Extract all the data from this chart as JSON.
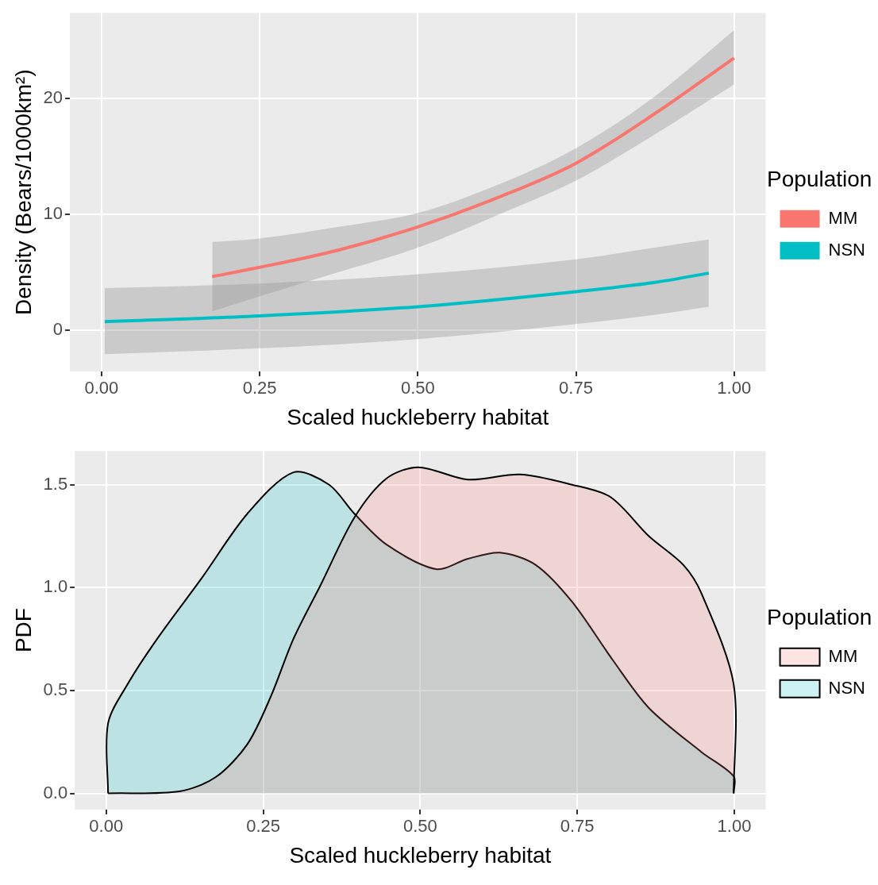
{
  "chart_data": [
    {
      "type": "line",
      "xlabel": "Scaled huckleberry habitat",
      "ylabel": "Density (Bears/1000km²)",
      "legend_title": "Population",
      "legend": "right",
      "grid": true,
      "xlim": [
        -0.05,
        1.05
      ],
      "ylim": [
        -3.6,
        27.4
      ],
      "xticks": [
        {
          "value": 0,
          "label": "0.00"
        },
        {
          "value": 0.25,
          "label": "0.25"
        },
        {
          "value": 0.5,
          "label": "0.50"
        },
        {
          "value": 0.75,
          "label": "0.75"
        },
        {
          "value": 1,
          "label": "1.00"
        }
      ],
      "yticks": [
        0,
        10,
        20
      ],
      "series": [
        {
          "name": "MM",
          "color": "#f8766d",
          "x": [
            0.175,
            0.25,
            0.375,
            0.5,
            0.625,
            0.75,
            0.875,
            1
          ],
          "values": [
            4.6,
            5.4,
            6.9,
            8.9,
            11.4,
            14.4,
            18.7,
            23.5
          ],
          "lower": [
            1.6,
            2.9,
            5.0,
            7.1,
            9.9,
            12.9,
            16.9,
            21.2
          ],
          "upper": [
            7.6,
            7.9,
            8.9,
            10.1,
            12.5,
            15.7,
            20.2,
            25.9
          ]
        },
        {
          "name": "NSN",
          "color": "#00bfc4",
          "x": [
            0.005,
            0.25,
            0.5,
            0.75,
            0.875,
            0.96
          ],
          "values": [
            0.7,
            1.2,
            2.0,
            3.3,
            4.1,
            4.9
          ],
          "lower": [
            -2.1,
            -1.6,
            -0.8,
            0.5,
            1.3,
            2.0
          ],
          "upper": [
            3.6,
            4.0,
            4.8,
            6.1,
            7.1,
            7.8
          ]
        }
      ]
    },
    {
      "type": "area",
      "xlabel": "Scaled huckleberry habitat",
      "ylabel": "PDF",
      "legend_title": "Population",
      "legend": "right",
      "grid": true,
      "xlim": [
        -0.05,
        1.05
      ],
      "ylim": [
        -0.079,
        1.664
      ],
      "xticks": [
        {
          "value": 0,
          "label": "0.00"
        },
        {
          "value": 0.25,
          "label": "0.25"
        },
        {
          "value": 0.5,
          "label": "0.50"
        },
        {
          "value": 0.75,
          "label": "0.75"
        },
        {
          "value": 1,
          "label": "1.00"
        }
      ],
      "yticks": [
        {
          "value": 0,
          "label": "0.0"
        },
        {
          "value": 0.5,
          "label": "0.5"
        },
        {
          "value": 1,
          "label": "1.0"
        },
        {
          "value": 1.5,
          "label": "1.5"
        }
      ],
      "series": [
        {
          "name": "MM",
          "color": "#f8766d",
          "x": [
            0.003,
            0.117,
            0.175,
            0.225,
            0.262,
            0.298,
            0.341,
            0.395,
            0.446,
            0.497,
            0.576,
            0.659,
            0.742,
            0.803,
            0.864,
            0.919,
            0.948,
            0.999,
            0.999
          ],
          "values": [
            0,
            0.01,
            0.08,
            0.24,
            0.47,
            0.75,
            1.01,
            1.34,
            1.53,
            1.585,
            1.525,
            1.55,
            1.5,
            1.44,
            1.25,
            1.11,
            0.97,
            0.53,
            0
          ]
        },
        {
          "name": "NSN",
          "color": "#00bfc4",
          "x": [
            0.003,
            0.003,
            0.036,
            0.081,
            0.153,
            0.225,
            0.298,
            0.355,
            0.395,
            0.446,
            0.525,
            0.576,
            0.627,
            0.684,
            0.742,
            0.806,
            0.864,
            0.948,
            0.999,
            0.999
          ],
          "values": [
            0,
            0.34,
            0.54,
            0.75,
            1.05,
            1.36,
            1.56,
            1.5,
            1.36,
            1.21,
            1.09,
            1.14,
            1.17,
            1.11,
            0.93,
            0.65,
            0.415,
            0.2,
            0.083,
            0
          ]
        }
      ]
    }
  ]
}
